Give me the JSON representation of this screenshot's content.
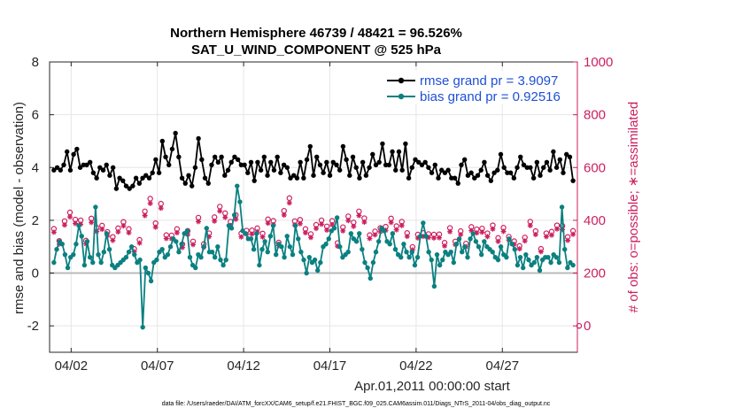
{
  "colors": {
    "rmse": "#000000",
    "bias": "#0b8080",
    "obs": "#cc1f5e",
    "legend_text": "#1f4fd6",
    "zero_line": "#bbbbbb"
  },
  "footer": "data file: /Users/raeder/DAI/ATM_forcXX/CAM6_setup/f.e21.FHIST_BGC.f09_025.CAM6assim.011/Diags_NTrS_2011-04/obs_diag_output.nc",
  "chart_data": {
    "type": "line",
    "title": "Northern Hemisphere 46739 / 48421 = 96.526%",
    "subtitle": "SAT_U_WIND_COMPONENT @ 525 hPa",
    "xlabel": "Apr.01,2011 00:00:00 start",
    "ylabel": "rmse and bias (model - observation)",
    "y2label": "# of obs: o=possible; ∗=assimilated",
    "xlim": [
      0.75,
      31.35
    ],
    "ylim": [
      -3,
      8
    ],
    "y2lim": [
      -100,
      1000
    ],
    "x_ticks": [
      2,
      7,
      12,
      17,
      22,
      27
    ],
    "x_tick_labels": [
      "04/02",
      "04/07",
      "04/12",
      "04/17",
      "04/22",
      "04/27"
    ],
    "y_ticks": [
      -2,
      0,
      2,
      4,
      6,
      8
    ],
    "y_tick_labels": [
      "-2",
      "0",
      "2",
      "4",
      "6",
      "8"
    ],
    "y2_ticks": [
      0,
      200,
      400,
      600,
      800,
      1000
    ],
    "y2_tick_labels": [
      "0",
      "200",
      "400",
      "600",
      "800",
      "1000"
    ],
    "grid": true,
    "legend": "top-right",
    "series": [
      {
        "name": "rmse grand pr = 3.9097",
        "axis": "left",
        "values": [
          3.9,
          4.3,
          4.0,
          3.6,
          3.9,
          4.0,
          4.1,
          4.2,
          4.6,
          4.6,
          3.9,
          4.5,
          4.5,
          4.6,
          4.7,
          3.8,
          4.0,
          4.2,
          4.1,
          4.2,
          4.1,
          4.2,
          4.2,
          4.0,
          3.8,
          3.9,
          3.6,
          3.9,
          4.0,
          4.1,
          3.9,
          3.7,
          4.1,
          4.0,
          3.7,
          3.4,
          4.0,
          3.5,
          3.2,
          3.8,
          3.6,
          3.4,
          3.5,
          3.0,
          3.3,
          3.0,
          3.2,
          3.1,
          3.3,
          3.4,
          3.6,
          3.4,
          3.4,
          3.7,
          3.6,
          4.1,
          3.7,
          3.9,
          3.6,
          3.4,
          3.8,
          3.8,
          4.3,
          4.2,
          3.8,
          4.1,
          5.0,
          4.0,
          4.4,
          4.3,
          4.1,
          4.2,
          4.7,
          4.6,
          5.3,
          4.5,
          4.4,
          3.8,
          3.6,
          4.0,
          3.4,
          3.8,
          3.7,
          3.6,
          3.3,
          3.7,
          4.0,
          3.8,
          5.1,
          4.5,
          4.3,
          4.1,
          3.6,
          3.1,
          3.4,
          4.8,
          4.1,
          4.6,
          4.4,
          3.6,
          4.2,
          4.1,
          4.4,
          4.5,
          3.7,
          3.8,
          3.9,
          4.0,
          4.2,
          4.6,
          4.4,
          4.6,
          4.3,
          4.9,
          4.1,
          4.3,
          4.1,
          3.6,
          3.8,
          4.2,
          4.2,
          3.6,
          3.5,
          3.5,
          4.2,
          4.1,
          3.9,
          3.7,
          4.4,
          4.1,
          3.7,
          3.9,
          4.2,
          4.0,
          3.9,
          4.2,
          4.4,
          3.9,
          3.8,
          3.8,
          4.1,
          4.2,
          4.0,
          3.9,
          3.6,
          3.5,
          3.7,
          3.9,
          3.6,
          3.6,
          4.2,
          4.5,
          3.6,
          4.5,
          4.3,
          4.7,
          4.8,
          4.5,
          3.7,
          4.1,
          4.4,
          4.3,
          4.1,
          3.9,
          3.8,
          4.3,
          4.2,
          4.0,
          3.7,
          3.9,
          4.2,
          4.5,
          4.1,
          4.0,
          3.9,
          3.9,
          4.8,
          4.6,
          4.3,
          4.0,
          3.7,
          3.8,
          4.4,
          4.9,
          4.0,
          3.9,
          3.6,
          3.8,
          4.2,
          4.4,
          3.7,
          4.4,
          4.0,
          4.2,
          4.5,
          3.9,
          4.1,
          4.3,
          4.2,
          4.5,
          4.9,
          4.3,
          4.1,
          3.8,
          4.1,
          4.8,
          4.6,
          4.2,
          3.9,
          4.0,
          4.6,
          4.0,
          3.9,
          4.2,
          4.9,
          4.1,
          3.6,
          3.8,
          4.0,
          4.2,
          4.3,
          4.4,
          4.2,
          3.8,
          4.1,
          4.1,
          4.2,
          4.3,
          4.0,
          4.0,
          3.8,
          3.9,
          4.1,
          3.6,
          3.6,
          4.1,
          3.9,
          4.0,
          3.8,
          3.8,
          3.9,
          4.0,
          3.6,
          3.5,
          3.6,
          3.9,
          3.4,
          3.7,
          4.1,
          4.5,
          4.3,
          4.0,
          3.7,
          3.7,
          3.8,
          3.6,
          3.6,
          4.0,
          3.7,
          3.8,
          3.9,
          4.3,
          4.2,
          3.8,
          3.7,
          3.9,
          3.5,
          3.7,
          3.8,
          3.7,
          3.9,
          4.1,
          4.5,
          4.5,
          4.0,
          4.1,
          3.8,
          3.6,
          3.8,
          3.9,
          3.6,
          4.2,
          4.0,
          3.4,
          4.4,
          3.8,
          4.1,
          3.9,
          4.0,
          3.8,
          4.0,
          3.9,
          3.6,
          3.8,
          4.2,
          3.9,
          3.7,
          3.9,
          4.0,
          4.3,
          4.2,
          3.9,
          3.9,
          4.1,
          4.6,
          3.8,
          4.0,
          3.6,
          4.3,
          3.9,
          3.8,
          4.2,
          4.5,
          4.6,
          4.4,
          3.9,
          3.5,
          3.5
        ]
      },
      {
        "name": "bias grand pr = 0.92516",
        "axis": "left",
        "values": [
          0.4,
          0.9,
          1.2,
          1.1,
          0.7,
          0.2,
          0.6,
          0.7,
          1.1,
          1.8,
          0.9,
          0.3,
          1.0,
          0.6,
          0.4,
          0.7,
          0.4,
          0.8,
          0.7,
          0.9,
          0.3,
          0.2,
          0.1,
          0.3,
          0.4,
          -0.1,
          0.6,
          0.0,
          -0.3,
          0.5,
          0.3,
          0.7,
          0.5,
          0.8,
          0.8,
          0.3,
          1.0,
          0.9,
          1.1,
          1.3,
          0.8,
          0.7,
          1.2,
          1.0,
          0.6,
          1.1,
          1.4,
          1.5,
          0.6,
          0.2,
          0.2,
          0.6,
          0.4,
          1.7,
          0.8,
          1.1,
          0.6,
          1.3,
          0.7,
          1.0,
          0.5,
          2.1,
          1.0,
          1.8,
          0.4,
          1.3,
          0.7,
          0.2,
          0.5,
          0.6,
          1.6,
          1.5,
          0.9,
          1.7,
          0.3,
          1.2,
          0.8,
          1.4,
          1.3,
          0.7,
          0.9,
          0.6,
          1.0,
          1.3,
          1.0,
          0.7,
          0.4,
          0.6,
          0.5,
          0.2,
          -0.1,
          0.2,
          0.9,
          0.5,
          0.3,
          0.1,
          0.4,
          1.0,
          1.1,
          1.3,
          0.6,
          0.7,
          1.1,
          2.1,
          1.5,
          0.6,
          0.8,
          0.7,
          1.7,
          1.2,
          1.3,
          1.5,
          0.5,
          0.2,
          0.4,
          0.3,
          0.9,
          1.2,
          1.3,
          1.7,
          0.7,
          1.0,
          1.1,
          1.6,
          0.7,
          1.0,
          1.3,
          0.9,
          1.1,
          0.3,
          0.6,
          0.9,
          1.5,
          1.8,
          1.0,
          1.5,
          0.5,
          0.0,
          0.5,
          0.2,
          0.8,
          0.2,
          0.5,
          0.6,
          0.7,
          0.3,
          0.8,
          1.2,
          0.7,
          0.8,
          0.2,
          1.4,
          0.9,
          1.3,
          0.5,
          0.6,
          0.9,
          1.1,
          0.3,
          1.0,
          0.5,
          1.2,
          0.9,
          1.3,
          1.2,
          1.3,
          0.3,
          0.5,
          -0.1,
          -0.7,
          0.3,
          0.8,
          1.0,
          0.5,
          0.7,
          0.8,
          1.0,
          1.4,
          1.2,
          1.3,
          1.1,
          0.5,
          0.2,
          0.3,
          0.7,
          0.4,
          1.0,
          1.0,
          0.7,
          1.1,
          1.3,
          1.4,
          1.0,
          0.8,
          1.3,
          1.4,
          1.7,
          1.1,
          0.8,
          0.5,
          0.8,
          0.6,
          1.1,
          0.9,
          0.8,
          1.0,
          1.1,
          0.6,
          0.5,
          1.0,
          1.1,
          0.8,
          0.2,
          0.7,
          0.5,
          0.3,
          0.9,
          1.1,
          1.0,
          1.4,
          0.2,
          0.6,
          0.7,
          1.2,
          0.8,
          0.7,
          0.6,
          0.5,
          0.2,
          0.6,
          0.1,
          0.5,
          0.4,
          1.0,
          0.2,
          0.6,
          0.4,
          0.4,
          1.0,
          0.8,
          0.5,
          0.6,
          1.1,
          0.7,
          0.2,
          0.5,
          0.2,
          0.4,
          0.8,
          0.6,
          0.5,
          0.9,
          1.1,
          0.8,
          0.6,
          0.7,
          0.7,
          0.5,
          0.9,
          0.2,
          0.5,
          0.1,
          0.3,
          0.2,
          0.0,
          0.3,
          0.7,
          0.6,
          0.7,
          0.3,
          0.6,
          0.4,
          0.5,
          0.3,
          0.8,
          0.6,
          1.0,
          0.5,
          0.7,
          0.4,
          1.0,
          0.7,
          0.3,
          0.6,
          0.5,
          0.2,
          0.7,
          2.5,
          0.6,
          1.0,
          0.4,
          0.6,
          0.3,
          0.2,
          0.7,
          0.5,
          0.2,
          0.3,
          0.2,
          0.4,
          0.5,
          0.6
        ],
        "sparse_values": [
          0.4,
          0.9,
          1.2,
          1.1,
          0.7,
          0.2,
          0.6,
          0.7,
          1.1,
          1.8,
          1.4,
          0.3,
          1.2,
          0.6,
          0.4,
          2.5,
          0.7,
          0.4,
          0.8,
          1.5,
          0.9,
          0.3,
          0.2,
          0.3,
          0.4,
          0.5,
          0.6,
          0.8,
          1.0,
          0.7,
          0.4,
          0.5,
          -2.05,
          0.2,
          0.0,
          -0.3,
          0.4,
          0.5,
          0.8,
          0.9,
          0.6,
          0.7,
          1.0,
          1.3,
          1.2,
          0.8,
          1.1,
          1.5,
          1.6,
          0.6,
          0.3,
          0.2,
          0.7,
          0.6,
          1.0,
          1.7,
          0.8,
          0.8,
          0.6,
          1.0,
          0.5,
          0.3,
          0.5,
          1.8,
          1.7,
          2.2,
          3.3,
          2.7,
          1.6,
          1.5,
          1.3,
          1.3,
          0.9,
          1.5,
          0.3,
          0.9,
          1.2,
          0.8,
          1.4,
          1.8,
          0.7,
          1.1,
          1.0,
          0.6,
          1.4,
          1.0,
          0.7,
          1.8,
          1.3,
          0.8,
          0.5,
          0.0,
          0.6,
          0.4,
          0.5,
          0.1,
          0.4,
          1.0,
          1.1,
          1.3,
          1.6,
          1.7,
          2.1,
          1.0,
          0.6,
          0.7,
          0.8,
          1.5,
          1.3,
          1.2,
          1.5,
          0.9,
          0.4,
          0.2,
          -0.2,
          0.4,
          0.8,
          1.2,
          1.7,
          1.6,
          1.2,
          1.1,
          1.5,
          0.9,
          0.7,
          0.6,
          1.1,
          0.8,
          0.6,
          0.8,
          0.3,
          0.6,
          1.4,
          1.9,
          1.4,
          0.8,
          0.5,
          -0.5,
          0.7,
          0.3,
          0.5,
          0.8,
          0.7,
          0.8,
          0.4,
          1.1,
          1.3,
          0.8,
          1.0,
          0.6,
          1.3,
          1.5,
          1.2,
          1.0,
          0.7,
          1.2,
          1.0,
          0.9,
          0.8,
          0.6,
          0.5,
          1.0,
          0.7,
          0.6,
          1.3,
          1.1,
          0.9,
          0.3,
          0.6,
          0.2,
          0.7,
          0.5,
          0.3,
          0.4,
          0.6,
          0.1,
          0.5,
          0.6,
          0.6,
          0.4,
          0.7,
          0.6,
          0.4,
          2.5,
          0.9,
          0.2,
          0.4,
          0.3
        ]
      }
    ],
    "obs_possible": [
      368,
      322,
      397,
      430,
      403,
      400,
      323,
      407,
      372,
      380,
      356,
      337,
      370,
      394,
      367,
      292,
      326,
      434,
      482,
      389,
      463,
      344,
      343,
      367,
      309,
      360,
      320,
      410,
      310,
      351,
      412,
      452,
      427,
      395,
      420,
      350,
      361,
      362,
      370,
      350,
      404,
      398,
      316,
      436,
      484,
      397,
      402,
      367,
      348,
      383,
      400,
      377,
      398,
      314,
      374,
      415,
      392,
      434,
      408,
      344,
      358,
      371,
      376,
      407,
      378,
      395,
      352,
      299,
      346,
      352,
      348,
      346,
      347,
      315,
      371,
      320,
      359,
      312,
      375,
      366,
      369,
      351,
      381,
      333,
      372,
      338,
      321,
      303,
      335,
      395,
      359,
      292,
      351,
      357,
      381,
      379,
      337,
      360
    ],
    "obs_assimilated": [
      355,
      310,
      382,
      413,
      388,
      385,
      311,
      392,
      358,
      366,
      342,
      324,
      356,
      379,
      353,
      281,
      314,
      418,
      464,
      374,
      446,
      331,
      330,
      353,
      297,
      346,
      308,
      395,
      298,
      338,
      397,
      435,
      411,
      380,
      404,
      337,
      348,
      348,
      356,
      337,
      389,
      383,
      304,
      420,
      466,
      382,
      387,
      353,
      335,
      369,
      385,
      363,
      383,
      302,
      360,
      399,
      377,
      418,
      393,
      331,
      345,
      357,
      362,
      392,
      364,
      380,
      339,
      288,
      333,
      339,
      335,
      333,
      334,
      303,
      357,
      308,
      346,
      300,
      361,
      352,
      355,
      338,
      367,
      320,
      358,
      325,
      309,
      292,
      322,
      380,
      346,
      281,
      338,
      344,
      367,
      365,
      324,
      347
    ]
  }
}
